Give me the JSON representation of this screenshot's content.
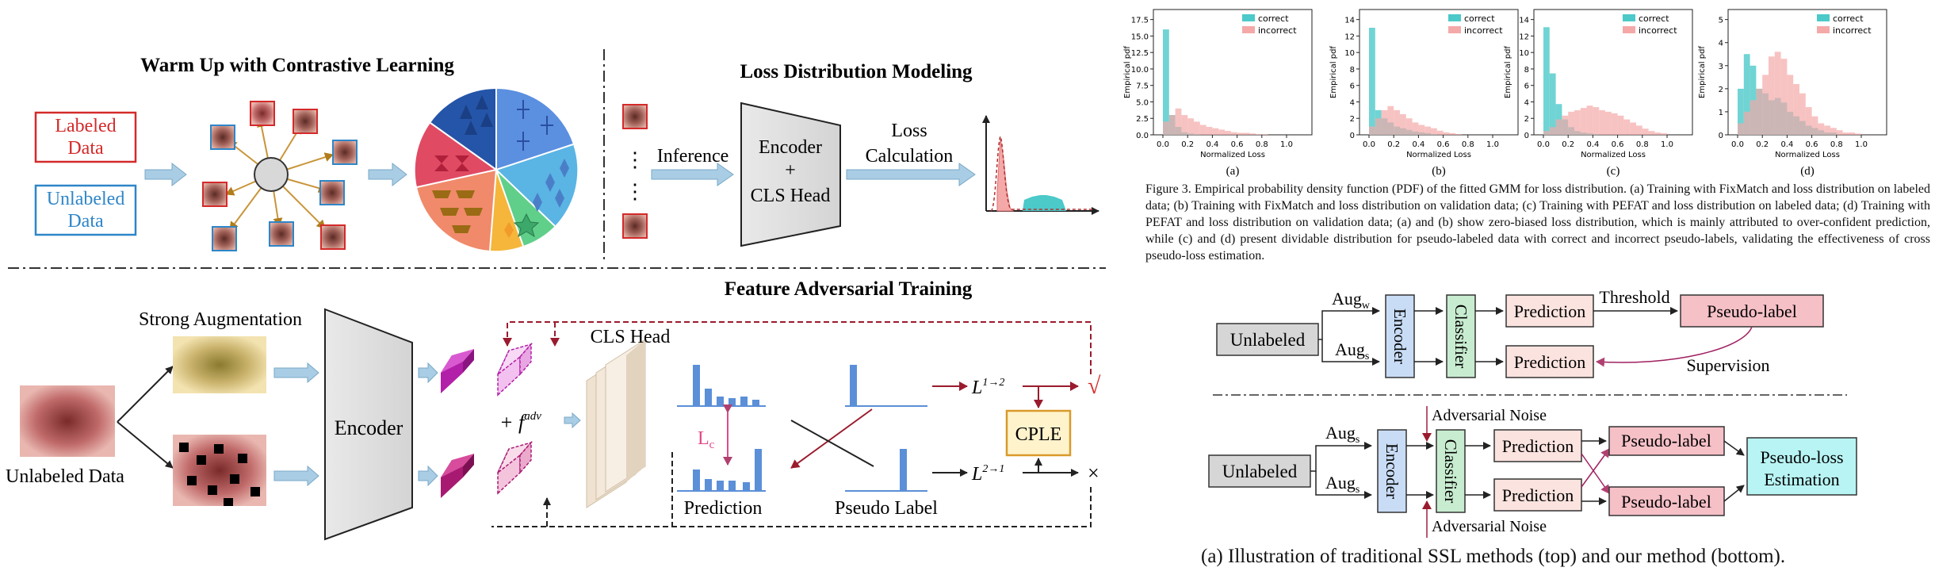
{
  "left_panel": {
    "warmup_title": "Warm Up with Contrastive Learning",
    "labeled_box": [
      "Labeled",
      "Data"
    ],
    "unlabeled_box": [
      "Unlabeled",
      "Data"
    ],
    "loss_dist_title": "Loss Distribution Modeling",
    "inference": "Inference",
    "encoder_cls": [
      "Encoder",
      "+",
      "CLS Head"
    ],
    "loss_calc": [
      "Loss",
      "Calculation"
    ],
    "ellipsis": "⋮",
    "strong_aug": "Strong Augmentation",
    "unlabeled_data": "Unlabeled Data",
    "encoder": "Encoder",
    "fat_title": "Feature Adversarial Training",
    "cls_head": "CLS Head",
    "plus_f": "+ f",
    "f_sup": "adv",
    "lc": "L",
    "lc_sub": "c",
    "prediction": "Prediction",
    "pseudo_label": "Pseudo Label",
    "l12": "L",
    "l12_sup": "1→2",
    "l21": "L",
    "l21_sup": "2→1",
    "cple": "CPLE",
    "check": "√",
    "cross": "×",
    "colors": {
      "labeled_red": "#d42a2a",
      "unlabeled_blue": "#2e86c8",
      "arrow_blue": "#a9cde4",
      "dark_red": "#9a1b2d",
      "cple_fill": "#fff3cc",
      "cple_border": "#d99a2b",
      "bar_blue": "#5b8fd8"
    }
  },
  "pdf_plots": {
    "ylabel": "Empirical pdf",
    "xlabel": "Normalized Loss",
    "legend": [
      "correct",
      "incorrect"
    ],
    "colors": {
      "correct": "#4cc9c9",
      "incorrect": "#f4a9a8"
    },
    "panels": [
      {
        "label": "(a)",
        "ymax": 17.5,
        "yticks": [
          "0.0",
          "2.5",
          "5.0",
          "7.5",
          "10.0",
          "12.5",
          "15.0",
          "17.5"
        ]
      },
      {
        "label": "(b)",
        "ymax": 14,
        "yticks": [
          "0",
          "2",
          "4",
          "6",
          "8",
          "10",
          "12",
          "14"
        ]
      },
      {
        "label": "(c)",
        "ymax": 15,
        "yticks": [
          "0",
          "2",
          "4",
          "6",
          "8",
          "10",
          "12",
          "14"
        ]
      },
      {
        "label": "(d)",
        "ymax": 5,
        "yticks": [
          "0",
          "1",
          "2",
          "3",
          "4",
          "5"
        ]
      }
    ],
    "xticks": [
      "0.0",
      "0.2",
      "0.4",
      "0.6",
      "0.8",
      "1.0"
    ]
  },
  "caption": "Figure 3. Empirical probability density function (PDF) of the fitted GMM for loss distribution. (a) Training with FixMatch and loss distribution on labeled data; (b) Training with FixMatch and loss distribution on validation data; (c) Training with PEFAT and loss distribution on labeled data; (d) Training with PEFAT and loss distribution on validation data; (a) and (b) show zero-biased loss distribution, which is mainly attributed to over-confident prediction, while (c) and (d) present dividable distribution for pseudo-labeled data with correct and incorrect pseudo-labels, validating the effectiveness of cross pseudo-loss estimation.",
  "ssl_diagram": {
    "top": {
      "unlabeled": "Unlabeled",
      "aug_w": "Aug",
      "aug_w_sub": "w",
      "aug_s": "Aug",
      "aug_s_sub": "s",
      "encoder": "Encoder",
      "classifier": "Classifier",
      "prediction": "Prediction",
      "threshold": "Threshold",
      "pseudo_label": "Pseudo-label",
      "supervision": "Supervision"
    },
    "bottom": {
      "unlabeled": "Unlabeled",
      "aug_s": "Aug",
      "aug_s_sub": "s",
      "encoder": "Encoder",
      "classifier": "Classifier",
      "prediction": "Prediction",
      "pseudo_label": "Pseudo-label",
      "adversarial_noise": "Adversarial Noise",
      "pseudo_loss": [
        "Pseudo-loss",
        "Estimation"
      ]
    },
    "caption": "(a) Illustration of traditional SSL methods (top) and our method (bottom).",
    "colors": {
      "gray": "#d6d6d6",
      "encoder": "#c9dcf5",
      "classifier": "#c8ecd0",
      "prediction": "#fbe3df",
      "pseudo_label": "#f6c0c7",
      "pseudo_loss": "#b8f4f4"
    }
  }
}
